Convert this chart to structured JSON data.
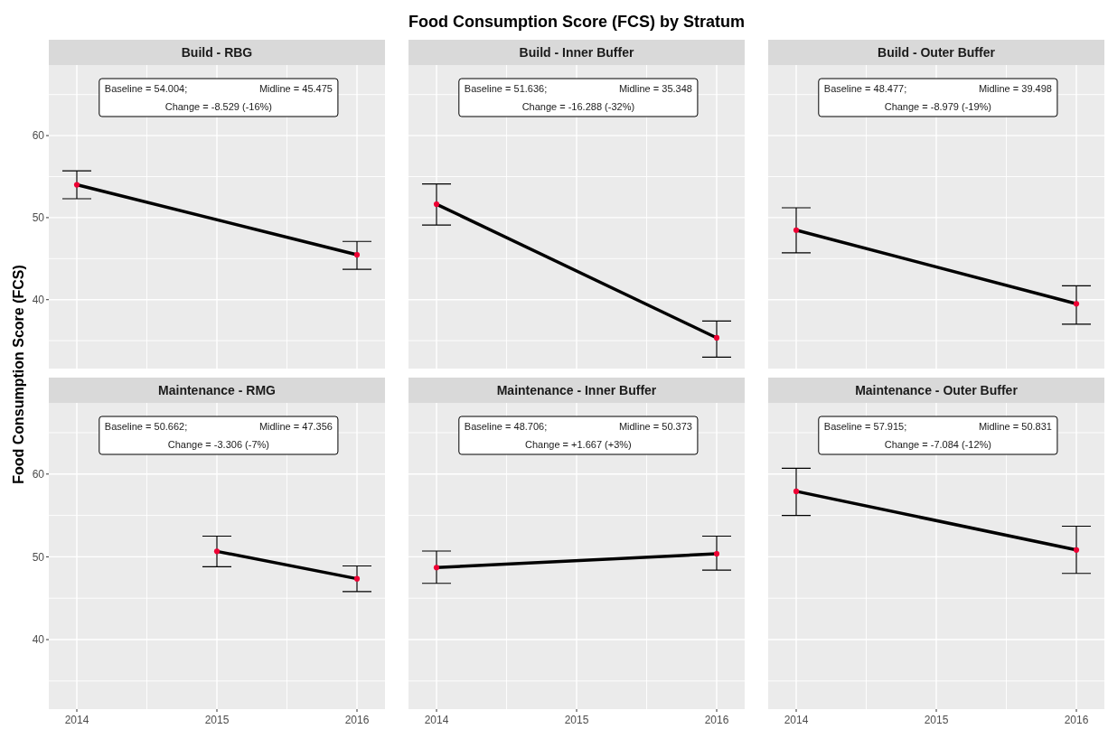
{
  "chart_data": [
    {
      "type": "line",
      "subtitle": "Build - RBG",
      "ylabel": "Food Consumption Score (FCS)",
      "annotations": [
        "Baseline = 54.004;",
        "Midline = 45.475",
        "Change = -8.529 (-16%)"
      ],
      "xlim": [
        2013.8,
        2016.2
      ],
      "xticks": [
        2014,
        2015,
        2016
      ],
      "ylim": [
        31.6,
        68.6
      ],
      "yticks": [
        {
          "value": 35,
          "label": null
        },
        40,
        {
          "value": 45,
          "label": null
        },
        50,
        {
          "value": 55,
          "label": null
        },
        60,
        {
          "value": 65,
          "label": null
        }
      ],
      "grid": true,
      "marker": "circle",
      "tick_labels": "y",
      "series": [
        {
          "color": "#000000",
          "colors": [
            "#ee0033",
            "#ee0033"
          ],
          "x": [
            2014,
            2016
          ],
          "values": [
            54.004,
            45.475
          ],
          "errors": [
            [
              52.3,
              55.7
            ],
            [
              43.7,
              47.1
            ]
          ]
        }
      ]
    },
    {
      "type": "line",
      "title": "Food Consumption Score (FCS) by Stratum",
      "subtitle": "Build - Inner Buffer",
      "annotations": [
        "Baseline = 51.636;",
        "Midline = 35.348",
        "Change = -16.288 (-32%)"
      ],
      "xlim": [
        2013.8,
        2016.2
      ],
      "xticks": [
        2014,
        2015,
        2016
      ],
      "ylim": [
        31.6,
        68.6
      ],
      "yticks": [
        {
          "value": 35,
          "label": null
        },
        40,
        {
          "value": 45,
          "label": null
        },
        50,
        {
          "value": 55,
          "label": null
        },
        60,
        {
          "value": 65,
          "label": null
        }
      ],
      "grid": true,
      "marker": "circle",
      "tick_labels": false,
      "series": [
        {
          "color": "#000000",
          "colors": [
            "#ee0033",
            "#ee0033"
          ],
          "x": [
            2014,
            2016
          ],
          "values": [
            51.636,
            35.348
          ],
          "errors": [
            [
              49.1,
              54.1
            ],
            [
              33.0,
              37.4
            ]
          ]
        }
      ]
    },
    {
      "type": "line",
      "subtitle": "Build - Outer Buffer",
      "annotations": [
        "Baseline = 48.477;",
        "Midline = 39.498",
        "Change = -8.979 (-19%)"
      ],
      "xlim": [
        2013.8,
        2016.2
      ],
      "xticks": [
        2014,
        2015,
        2016
      ],
      "ylim": [
        31.6,
        68.6
      ],
      "yticks": [
        {
          "value": 35,
          "label": null
        },
        40,
        {
          "value": 45,
          "label": null
        },
        50,
        {
          "value": 55,
          "label": null
        },
        60,
        {
          "value": 65,
          "label": null
        }
      ],
      "grid": true,
      "marker": "circle",
      "tick_labels": false,
      "series": [
        {
          "color": "#000000",
          "colors": [
            "#ee0033",
            "#ee0033"
          ],
          "x": [
            2014,
            2016
          ],
          "values": [
            48.477,
            39.498
          ],
          "errors": [
            [
              45.7,
              51.2
            ],
            [
              37.0,
              41.7
            ]
          ]
        }
      ]
    },
    {
      "type": "line",
      "subtitle": "Maintenance - RMG",
      "annotations": [
        "Baseline = 50.662;",
        "Midline = 47.356",
        "Change = -3.306 (-7%)"
      ],
      "xlim": [
        2013.8,
        2016.2
      ],
      "xticks": [
        2014,
        2015,
        2016
      ],
      "ylim": [
        31.6,
        68.6
      ],
      "yticks": [
        {
          "value": 35,
          "label": null
        },
        40,
        {
          "value": 45,
          "label": null
        },
        50,
        {
          "value": 55,
          "label": null
        },
        60,
        {
          "value": 65,
          "label": null
        }
      ],
      "grid": true,
      "marker": "circle",
      "series": [
        {
          "color": "#000000",
          "colors": [
            "#ee0033",
            "#ee0033"
          ],
          "x": [
            2015,
            2016
          ],
          "values": [
            50.662,
            47.356
          ],
          "errors": [
            [
              48.8,
              52.5
            ],
            [
              45.8,
              48.9
            ]
          ]
        }
      ]
    },
    {
      "type": "line",
      "subtitle": "Maintenance - Inner Buffer",
      "annotations": [
        "Baseline = 48.706;",
        "Midline = 50.373",
        "Change = +1.667 (+3%)"
      ],
      "xlim": [
        2013.8,
        2016.2
      ],
      "xticks": [
        2014,
        2015,
        2016
      ],
      "ylim": [
        31.6,
        68.6
      ],
      "yticks": [
        {
          "value": 35,
          "label": null
        },
        40,
        {
          "value": 45,
          "label": null
        },
        50,
        {
          "value": 55,
          "label": null
        },
        60,
        {
          "value": 65,
          "label": null
        }
      ],
      "grid": true,
      "marker": "circle",
      "tick_labels": "x",
      "series": [
        {
          "color": "#000000",
          "colors": [
            "#ee0033",
            "#ee0033"
          ],
          "x": [
            2014,
            2016
          ],
          "values": [
            48.706,
            50.373
          ],
          "errors": [
            [
              46.8,
              50.7
            ],
            [
              48.4,
              52.5
            ]
          ]
        }
      ]
    },
    {
      "type": "line",
      "subtitle": "Maintenance - Outer Buffer",
      "annotations": [
        "Baseline = 57.915;",
        "Midline = 50.831",
        "Change = -7.084 (-12%)"
      ],
      "xlim": [
        2013.8,
        2016.2
      ],
      "xticks": [
        2014,
        2015,
        2016
      ],
      "ylim": [
        31.6,
        68.6
      ],
      "yticks": [
        {
          "value": 35,
          "label": null
        },
        40,
        {
          "value": 45,
          "label": null
        },
        50,
        {
          "value": 55,
          "label": null
        },
        60,
        {
          "value": 65,
          "label": null
        }
      ],
      "grid": true,
      "marker": "circle",
      "tick_labels": "x",
      "series": [
        {
          "color": "#000000",
          "colors": [
            "#ee0033",
            "#ee0033"
          ],
          "x": [
            2014,
            2016
          ],
          "values": [
            57.915,
            50.831
          ],
          "errors": [
            [
              55.0,
              60.7
            ],
            [
              48.0,
              53.7
            ]
          ]
        }
      ]
    }
  ]
}
